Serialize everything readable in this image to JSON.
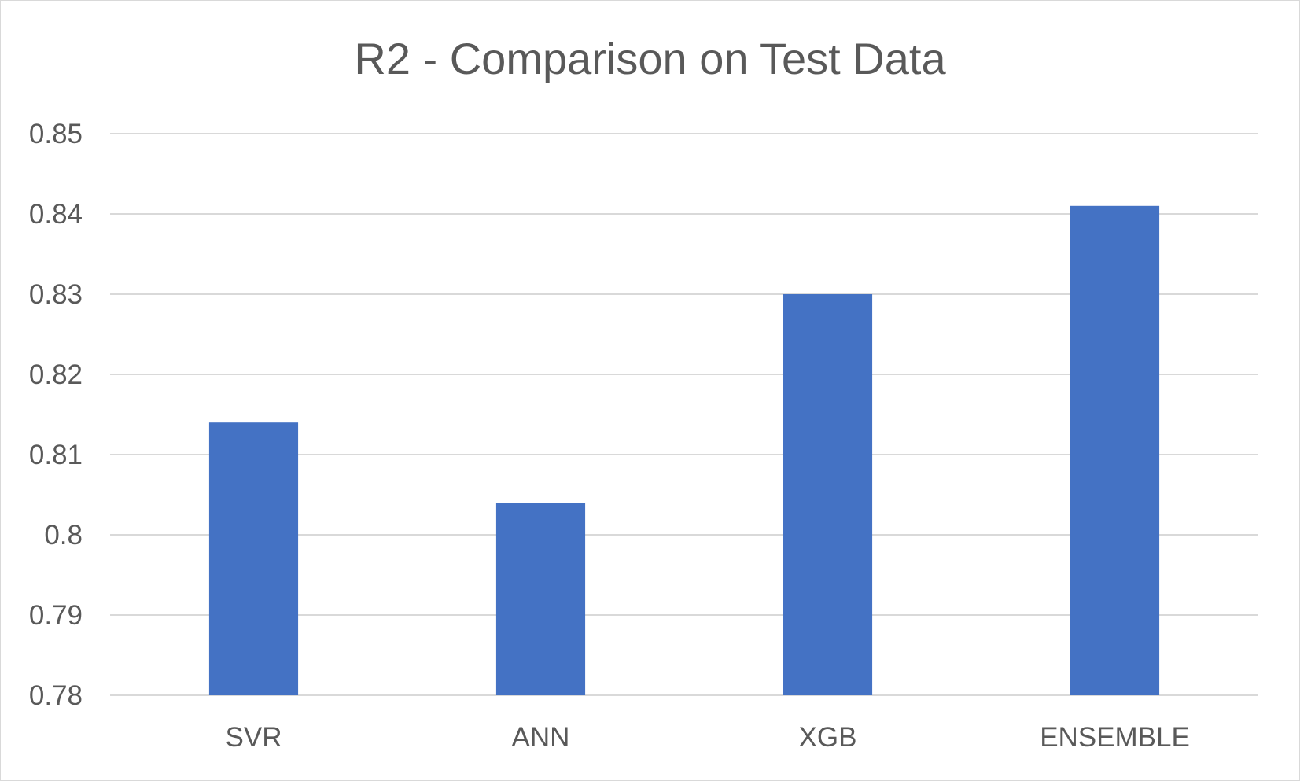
{
  "chart_data": {
    "type": "bar",
    "title": "R2 - Comparison on Test Data",
    "xlabel": "",
    "ylabel": "",
    "categories": [
      "SVR",
      "ANN",
      "XGB",
      "ENSEMBLE"
    ],
    "values": [
      0.814,
      0.804,
      0.83,
      0.841
    ],
    "ylim": [
      0.78,
      0.85
    ],
    "yticks": [
      0.78,
      0.79,
      0.8,
      0.81,
      0.82,
      0.83,
      0.84,
      0.85
    ],
    "ytick_labels": [
      "0.78",
      "0.79",
      "0.8",
      "0.81",
      "0.82",
      "0.83",
      "0.84",
      "0.85"
    ],
    "grid": true,
    "legend": "none",
    "bar_color": "#4472c4",
    "grid_color": "#d9d9d9",
    "text_color": "#595959"
  }
}
